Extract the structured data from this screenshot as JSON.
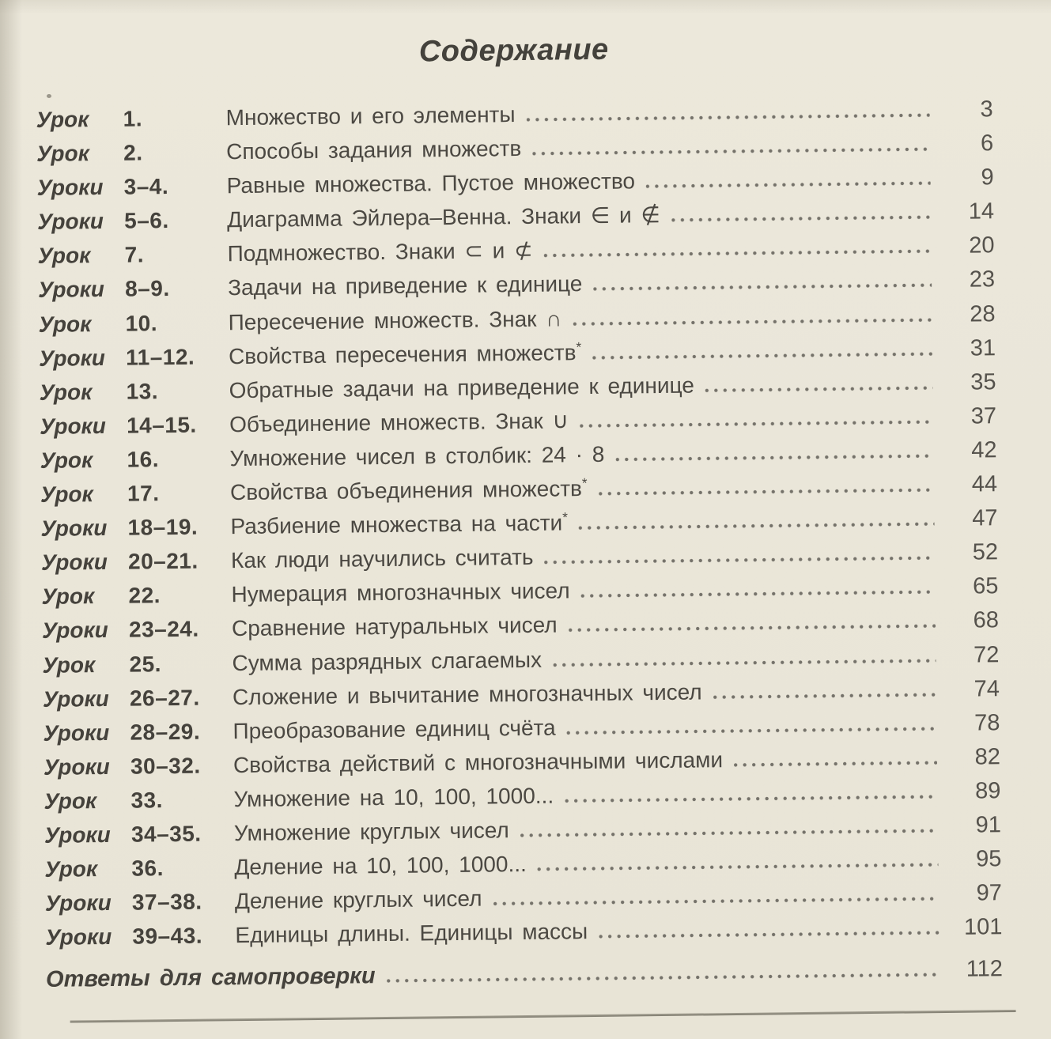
{
  "page": {
    "title": "Содержание",
    "colors": {
      "paper": "#eae6d9",
      "ink": "#4b4842",
      "dots": "#75726a",
      "pagenum": "#55524c",
      "rule": "#8a8679"
    },
    "toc": {
      "entries": [
        {
          "kind": "Урок",
          "num": "1.",
          "title": "Множество и его элементы",
          "page": "3"
        },
        {
          "kind": "Урок",
          "num": "2.",
          "title": "Способы задания множеств",
          "page": "6"
        },
        {
          "kind": "Уроки",
          "num": "3–4.",
          "title": "Равные множества. Пустое множество",
          "page": "9"
        },
        {
          "kind": "Уроки",
          "num": "5–6.",
          "title": "Диаграмма Эйлера–Венна. Знаки ∈ и ∉",
          "page": "14"
        },
        {
          "kind": "Урок",
          "num": "7.",
          "title": "Подмножество. Знаки ⊂ и ⊄",
          "page": "20"
        },
        {
          "kind": "Уроки",
          "num": "8–9.",
          "title": "Задачи на приведение к единице",
          "page": "23"
        },
        {
          "kind": "Урок",
          "num": "10.",
          "title": "Пересечение множеств. Знак ∩",
          "page": "28"
        },
        {
          "kind": "Уроки",
          "num": "11–12.",
          "title": "Свойства пересечения множеств",
          "sup": "*",
          "page": "31"
        },
        {
          "kind": "Урок",
          "num": "13.",
          "title": "Обратные задачи на приведение к единице",
          "page": "35"
        },
        {
          "kind": "Уроки",
          "num": "14–15.",
          "title": "Объединение множеств. Знак ∪",
          "page": "37"
        },
        {
          "kind": "Урок",
          "num": "16.",
          "title": "Умножение чисел в столбик: 24 · 8",
          "page": "42"
        },
        {
          "kind": "Урок",
          "num": "17.",
          "title": "Свойства объединения множеств",
          "sup": "*",
          "page": "44"
        },
        {
          "kind": "Уроки",
          "num": "18–19.",
          "title": "Разбиение множества на части",
          "sup": "*",
          "page": "47"
        },
        {
          "kind": "Уроки",
          "num": "20–21.",
          "title": "Как люди научились считать",
          "page": "52"
        },
        {
          "kind": "Урок",
          "num": "22.",
          "title": "Нумерация многозначных чисел",
          "page": "65"
        },
        {
          "kind": "Уроки",
          "num": "23–24.",
          "title": "Сравнение натуральных чисел",
          "page": "68"
        },
        {
          "kind": "Урок",
          "num": "25.",
          "title": "Сумма разрядных слагаемых",
          "page": "72"
        },
        {
          "kind": "Уроки",
          "num": "26–27.",
          "title": "Сложение и вычитание многозначных чисел",
          "page": "74"
        },
        {
          "kind": "Уроки",
          "num": "28–29.",
          "title": "Преобразование единиц счёта",
          "page": "78"
        },
        {
          "kind": "Уроки",
          "num": "30–32.",
          "title": "Свойства действий с многозначными числами",
          "page": "82"
        },
        {
          "kind": "Урок",
          "num": "33.",
          "title": "Умножение на 10, 100, 1000...",
          "page": "89"
        },
        {
          "kind": "Уроки",
          "num": "34–35.",
          "title": "Умножение круглых чисел",
          "page": "91"
        },
        {
          "kind": "Урок",
          "num": "36.",
          "title": "Деление на 10, 100, 1000...",
          "page": "95"
        },
        {
          "kind": "Уроки",
          "num": "37–38.",
          "title": "Деление круглых чисел",
          "page": "97"
        },
        {
          "kind": "Уроки",
          "num": "39–43.",
          "title": "Единицы длины. Единицы массы",
          "page": "101"
        }
      ]
    },
    "answers": {
      "label": "Ответы для самопроверки",
      "page": "112"
    }
  }
}
